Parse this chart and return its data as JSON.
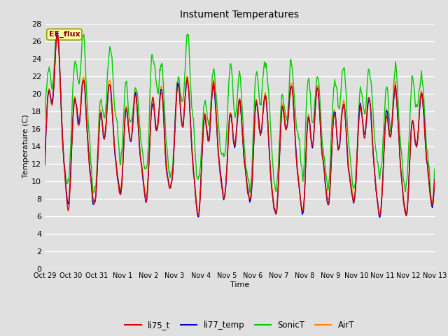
{
  "title": "Instument Temperatures",
  "xlabel": "Time",
  "ylabel": "Temperature (C)",
  "ylim": [
    0,
    28
  ],
  "ytick_max": 28,
  "ytick_step": 2,
  "background_color": "#e0e0e0",
  "plot_bg_color": "#e0e0e0",
  "grid_color": "#ffffff",
  "tick_labels": [
    "Oct 29",
    "Oct 30",
    "Oct 31",
    "Nov 1",
    "Nov 2",
    "Nov 3",
    "Nov 4",
    "Nov 5",
    "Nov 6",
    "Nov 7",
    "Nov 8",
    "Nov 9",
    "Nov 10",
    "Nov 11",
    "Nov 12",
    "Nov 13"
  ],
  "series": {
    "li75_t": {
      "color": "#dd0000",
      "lw": 1.0
    },
    "li77_temp": {
      "color": "#0000dd",
      "lw": 1.0
    },
    "SonicT": {
      "color": "#00cc00",
      "lw": 1.0
    },
    "AirT": {
      "color": "#ff8800",
      "lw": 1.0
    }
  },
  "annotation": {
    "text": "EE_flux",
    "facecolor": "#ffffaa",
    "edgecolor": "#999900",
    "textcolor": "#880000"
  },
  "n_days": 15,
  "pts_per_day": 48
}
